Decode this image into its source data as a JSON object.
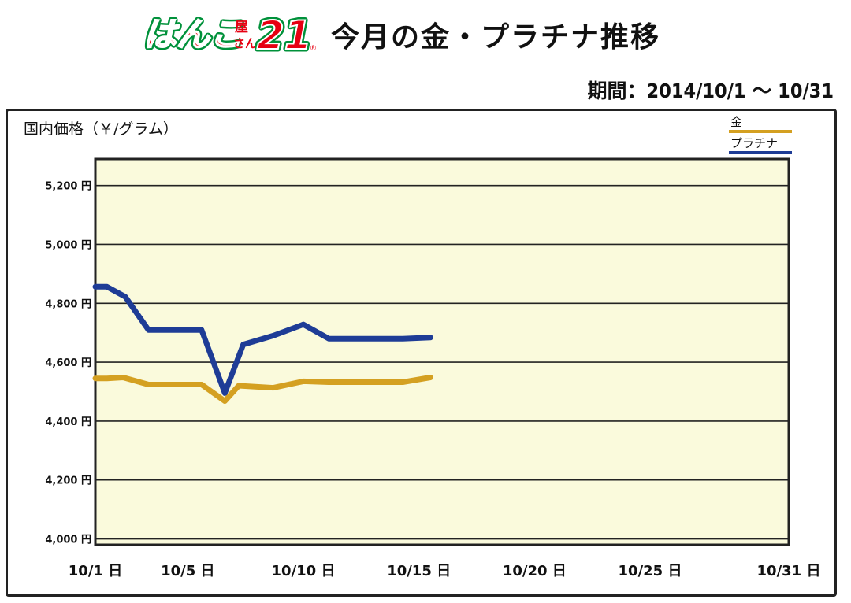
{
  "header": {
    "logo_text": "はんこ屋さん21",
    "title": "今月の金・プラチナ推移",
    "period": "期間：2014/10/1 〜 10/31"
  },
  "colors": {
    "gold": "#D4A021",
    "platinum": "#1E3C96",
    "plot_background": "#FAFADC",
    "logo_red": "#E60012",
    "logo_green": "#00913A"
  },
  "chart_data": {
    "type": "line",
    "ylabel": "国内価格（￥/グラム）",
    "ylim": [
      3980,
      5290
    ],
    "y_ticks": [
      4000,
      4200,
      4400,
      4600,
      4800,
      5000,
      5200
    ],
    "y_tick_labels": [
      "4,000 円",
      "4,200 円",
      "4,400 円",
      "4,600 円",
      "4,800 円",
      "5,000 円",
      "5,200 円"
    ],
    "x_range": [
      1,
      31
    ],
    "x_tick_labels": [
      {
        "day": 1,
        "label": "10/1 日"
      },
      {
        "day": 5,
        "label": "10/5 日"
      },
      {
        "day": 10,
        "label": "10/10 日"
      },
      {
        "day": 15,
        "label": "10/15 日"
      },
      {
        "day": 20,
        "label": "10/20 日"
      },
      {
        "day": 25,
        "label": "10/25 日"
      },
      {
        "day": 31,
        "label": "10/31 日"
      }
    ],
    "grid": true,
    "legend_position": "top-right",
    "series": [
      {
        "name": "金",
        "color": "#D4A021",
        "points": [
          {
            "day": 1,
            "value": 4545
          },
          {
            "day": 1.5,
            "value": 4545
          },
          {
            "day": 2.2,
            "value": 4548
          },
          {
            "day": 3.3,
            "value": 4524
          },
          {
            "day": 5.6,
            "value": 4524
          },
          {
            "day": 6.6,
            "value": 4468
          },
          {
            "day": 7.2,
            "value": 4520
          },
          {
            "day": 8.7,
            "value": 4513
          },
          {
            "day": 10,
            "value": 4535
          },
          {
            "day": 11.1,
            "value": 4532
          },
          {
            "day": 14.3,
            "value": 4532
          },
          {
            "day": 15.5,
            "value": 4548
          }
        ]
      },
      {
        "name": "プラチナ",
        "color": "#1E3C96",
        "points": [
          {
            "day": 1,
            "value": 4856
          },
          {
            "day": 1.5,
            "value": 4856
          },
          {
            "day": 2.3,
            "value": 4822
          },
          {
            "day": 3.3,
            "value": 4709
          },
          {
            "day": 5.6,
            "value": 4709
          },
          {
            "day": 6.6,
            "value": 4495
          },
          {
            "day": 7.4,
            "value": 4660
          },
          {
            "day": 8.7,
            "value": 4690
          },
          {
            "day": 10,
            "value": 4728
          },
          {
            "day": 11.1,
            "value": 4680
          },
          {
            "day": 14.3,
            "value": 4680
          },
          {
            "day": 15.5,
            "value": 4684
          }
        ]
      }
    ]
  }
}
